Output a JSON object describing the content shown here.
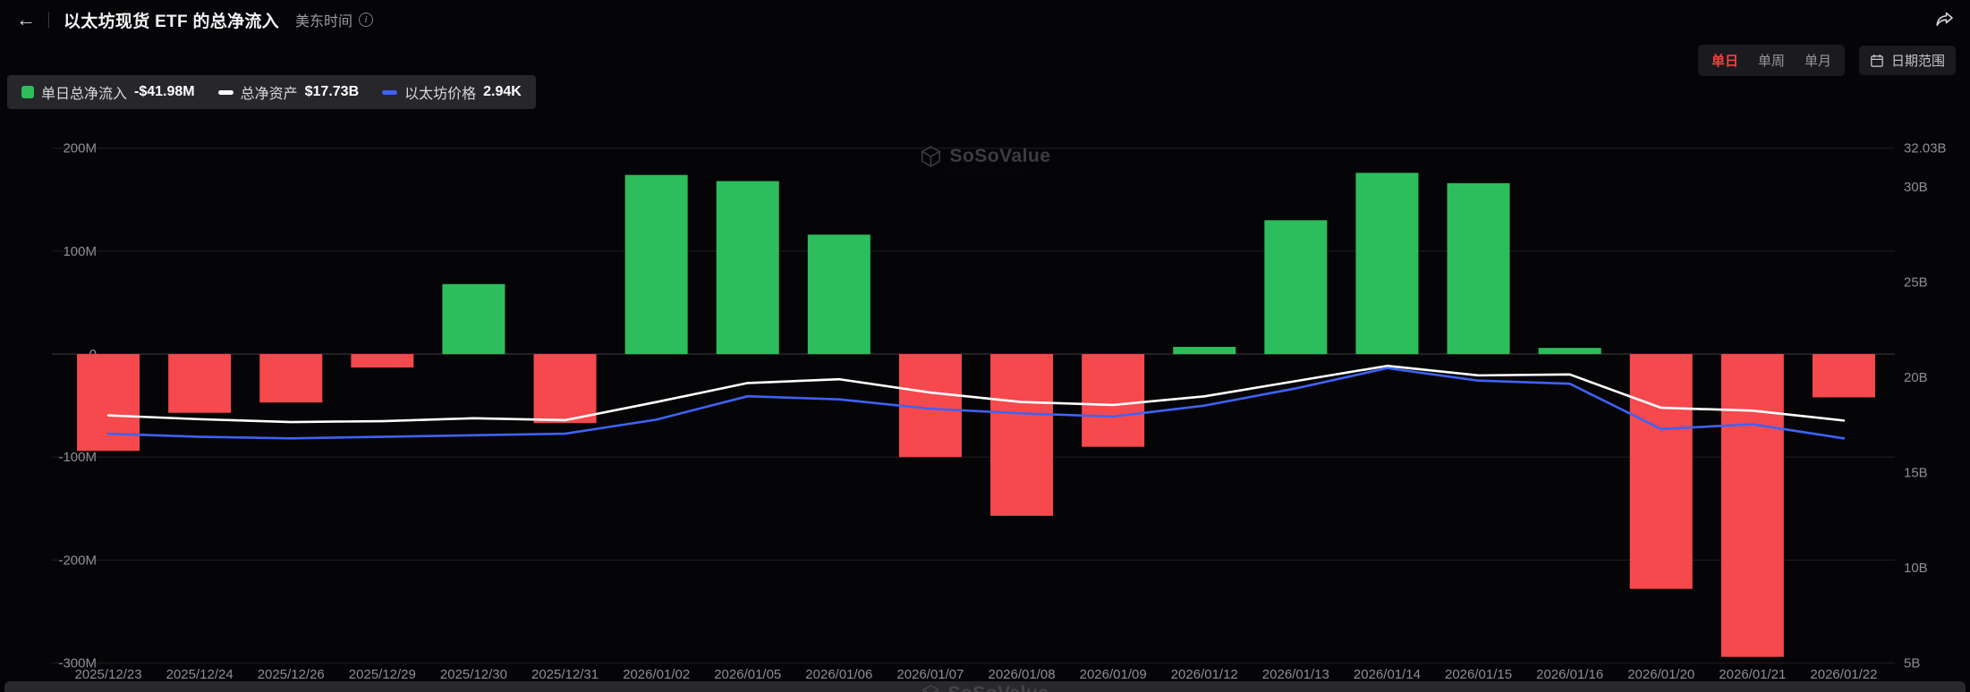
{
  "header": {
    "back_icon": "←",
    "title": "以太坊现货 ETF 的总净流入",
    "timezone_label": "美东时间",
    "info_icon": "i"
  },
  "controls": {
    "range_tabs": [
      {
        "label": "单日",
        "active": true
      },
      {
        "label": "单周",
        "active": false
      },
      {
        "label": "单月",
        "active": false
      }
    ],
    "date_range_label": "日期范围"
  },
  "legend": [
    {
      "label": "单日总净流入",
      "value": "-$41.98M",
      "color": "#2EBD5C",
      "swatch": "bar"
    },
    {
      "label": "总净资产",
      "value": "$17.73B",
      "color": "#FFFFFF",
      "swatch": "line"
    },
    {
      "label": "以太坊价格",
      "value": "2.94K",
      "color": "#3E63F5",
      "swatch": "line"
    }
  ],
  "watermark": {
    "text": "SoSoValue"
  },
  "ui_colors": {
    "background": "#050507",
    "accent_red": "#F0443F",
    "axis_text": "#8E8E93",
    "grid_line": "#202025",
    "zero_line": "#3D3D44"
  },
  "chart_data": {
    "type": "bar+line",
    "title": "以太坊现货 ETF 的总净流入",
    "legend_position": "top-left",
    "grid": true,
    "categories": [
      "2025/12/23",
      "2025/12/24",
      "2025/12/26",
      "2025/12/29",
      "2025/12/30",
      "2025/12/31",
      "2026/01/02",
      "2026/01/05",
      "2026/01/06",
      "2026/01/07",
      "2026/01/08",
      "2026/01/09",
      "2026/01/12",
      "2026/01/13",
      "2026/01/14",
      "2026/01/15",
      "2026/01/16",
      "2026/01/20",
      "2026/01/21",
      "2026/01/22"
    ],
    "series": [
      {
        "name": "单日总净流入",
        "type": "bar",
        "unit": "M USD",
        "axis": "left",
        "values": [
          -94,
          -57,
          -47,
          -13,
          68,
          -67,
          174,
          168,
          116,
          -100,
          -157,
          -90,
          7,
          130,
          176,
          166,
          6,
          -228,
          -294,
          -41.98
        ]
      },
      {
        "name": "总净资产",
        "type": "line",
        "unit": "B USD",
        "axis": "right",
        "values": [
          18.0,
          17.8,
          17.65,
          17.7,
          17.85,
          17.75,
          18.7,
          19.7,
          19.9,
          19.2,
          18.7,
          18.55,
          19.0,
          19.8,
          20.6,
          20.1,
          20.15,
          18.4,
          18.25,
          17.73
        ]
      },
      {
        "name": "以太坊价格",
        "type": "line",
        "unit": "K USD",
        "axis": "price",
        "values": [
          2.97,
          2.95,
          2.94,
          2.95,
          2.96,
          2.97,
          3.06,
          3.21,
          3.19,
          3.13,
          3.1,
          3.08,
          3.15,
          3.26,
          3.39,
          3.31,
          3.29,
          3.0,
          3.03,
          2.94
        ]
      }
    ],
    "axes": {
      "left": {
        "ticks": [
          "200M",
          "100M",
          "0",
          "-100M",
          "-200M",
          "-300M"
        ],
        "tick_values": [
          200,
          100,
          0,
          -100,
          -200,
          -300
        ],
        "min": -300,
        "max": 200
      },
      "right": {
        "ticks": [
          "32.03B",
          "30B",
          "25B",
          "20B",
          "15B",
          "10B",
          "5B"
        ],
        "tick_values": [
          32.03,
          30,
          25,
          20,
          15,
          10,
          5
        ],
        "min": 5,
        "max": 32.03
      },
      "price": {
        "min": 1.5,
        "max": 4.8
      }
    },
    "colors": {
      "positive": "#2EBD5C",
      "negative": "#F5494D",
      "assets_line": "#FFFFFF",
      "price_line": "#3E63F5"
    }
  }
}
